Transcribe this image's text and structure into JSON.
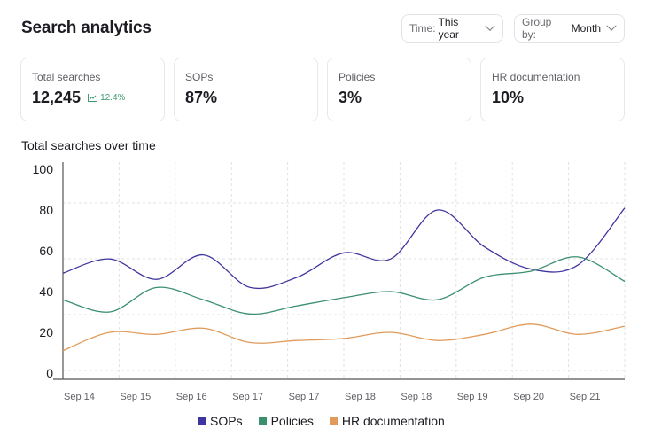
{
  "header": {
    "title": "Search analytics",
    "time_filter": {
      "label": "Time:",
      "value": "This year"
    },
    "group_filter": {
      "label": "Group by:",
      "value": "Month"
    }
  },
  "stats": [
    {
      "label": "Total searches",
      "value": "12,245",
      "trend": "12.4%",
      "trend_icon": "trend-up-icon"
    },
    {
      "label": "SOPs",
      "value": "87%"
    },
    {
      "label": "Policies",
      "value": "3%"
    },
    {
      "label": "HR documentation",
      "value": "10%"
    }
  ],
  "colors": {
    "sops": "#3f35a0",
    "policies": "#3a8f6e",
    "hr": "#e09a5a",
    "trend": "#3d9a72"
  },
  "chart_data": {
    "type": "line",
    "title": "Total searches over time",
    "xlabel": "",
    "ylabel": "",
    "ylim": [
      0,
      100
    ],
    "yticks": [
      0,
      20,
      40,
      60,
      80,
      100
    ],
    "x_tick_labels": [
      "Sep 14",
      "Sep 15",
      "Sep 16",
      "Sep 17",
      "Sep 17",
      "Sep 18",
      "Sep 18",
      "Sep 19",
      "Sep 20",
      "Sep 21"
    ],
    "grid": true,
    "legend": "bottom",
    "series": [
      {
        "name": "SOPs",
        "color": "#3f35a0",
        "values": [
          49,
          56,
          46,
          58,
          42,
          47,
          59,
          56,
          80,
          62,
          51,
          53,
          81
        ]
      },
      {
        "name": "Policies",
        "color": "#3a8f6e",
        "values": [
          36,
          30,
          42,
          36,
          29,
          33,
          37,
          40,
          36,
          47,
          50,
          57,
          45
        ]
      },
      {
        "name": "HR documentation",
        "color": "#e09a5a",
        "values": [
          11,
          20,
          19,
          22,
          15,
          16,
          17,
          20,
          16,
          19,
          24,
          19,
          23
        ]
      }
    ]
  }
}
